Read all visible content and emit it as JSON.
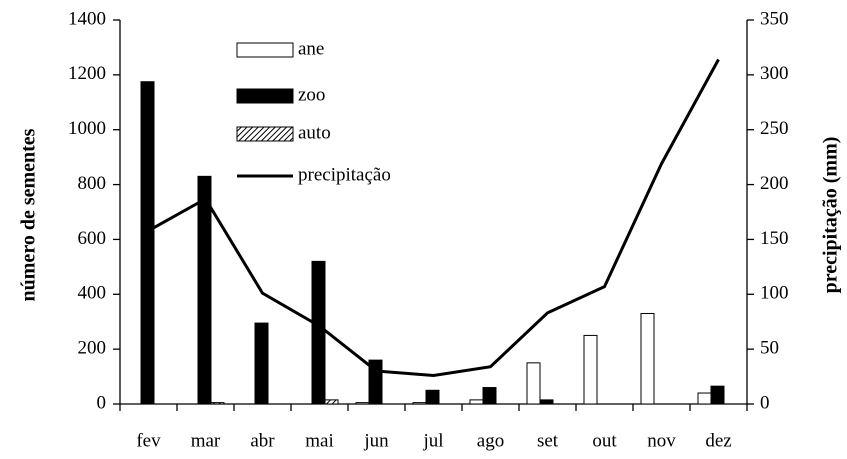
{
  "chart_data": {
    "type": "bar",
    "categories": [
      "fev",
      "mar",
      "abr",
      "mai",
      "jun",
      "jul",
      "ago",
      "set",
      "out",
      "nov",
      "dez"
    ],
    "series": [
      {
        "name": "ane",
        "color": "#ffffff",
        "values": [
          0,
          0,
          0,
          0,
          5,
          5,
          15,
          150,
          250,
          330,
          40
        ]
      },
      {
        "name": "zoo",
        "color": "#000000",
        "values": [
          1175,
          830,
          295,
          520,
          160,
          50,
          60,
          15,
          0,
          0,
          65
        ]
      },
      {
        "name": "auto",
        "color": "hatch",
        "values": [
          0,
          5,
          0,
          15,
          0,
          0,
          0,
          0,
          0,
          0,
          0
        ]
      },
      {
        "name": "precipitação",
        "type": "line",
        "axis": "y2",
        "color": "#000000",
        "values": [
          158,
          187,
          101,
          71,
          30,
          26,
          34,
          83,
          107,
          219,
          314
        ]
      }
    ],
    "y_label": "número de sementes",
    "y2_label": "precipitação (mm)",
    "ylim": [
      0,
      1400
    ],
    "yticks": [
      0,
      200,
      400,
      600,
      800,
      1000,
      1200,
      1400
    ],
    "y2lim": [
      0,
      350
    ],
    "y2ticks": [
      0,
      50,
      100,
      150,
      200,
      250,
      300,
      350
    ],
    "legend": "top-left",
    "grid": false
  }
}
